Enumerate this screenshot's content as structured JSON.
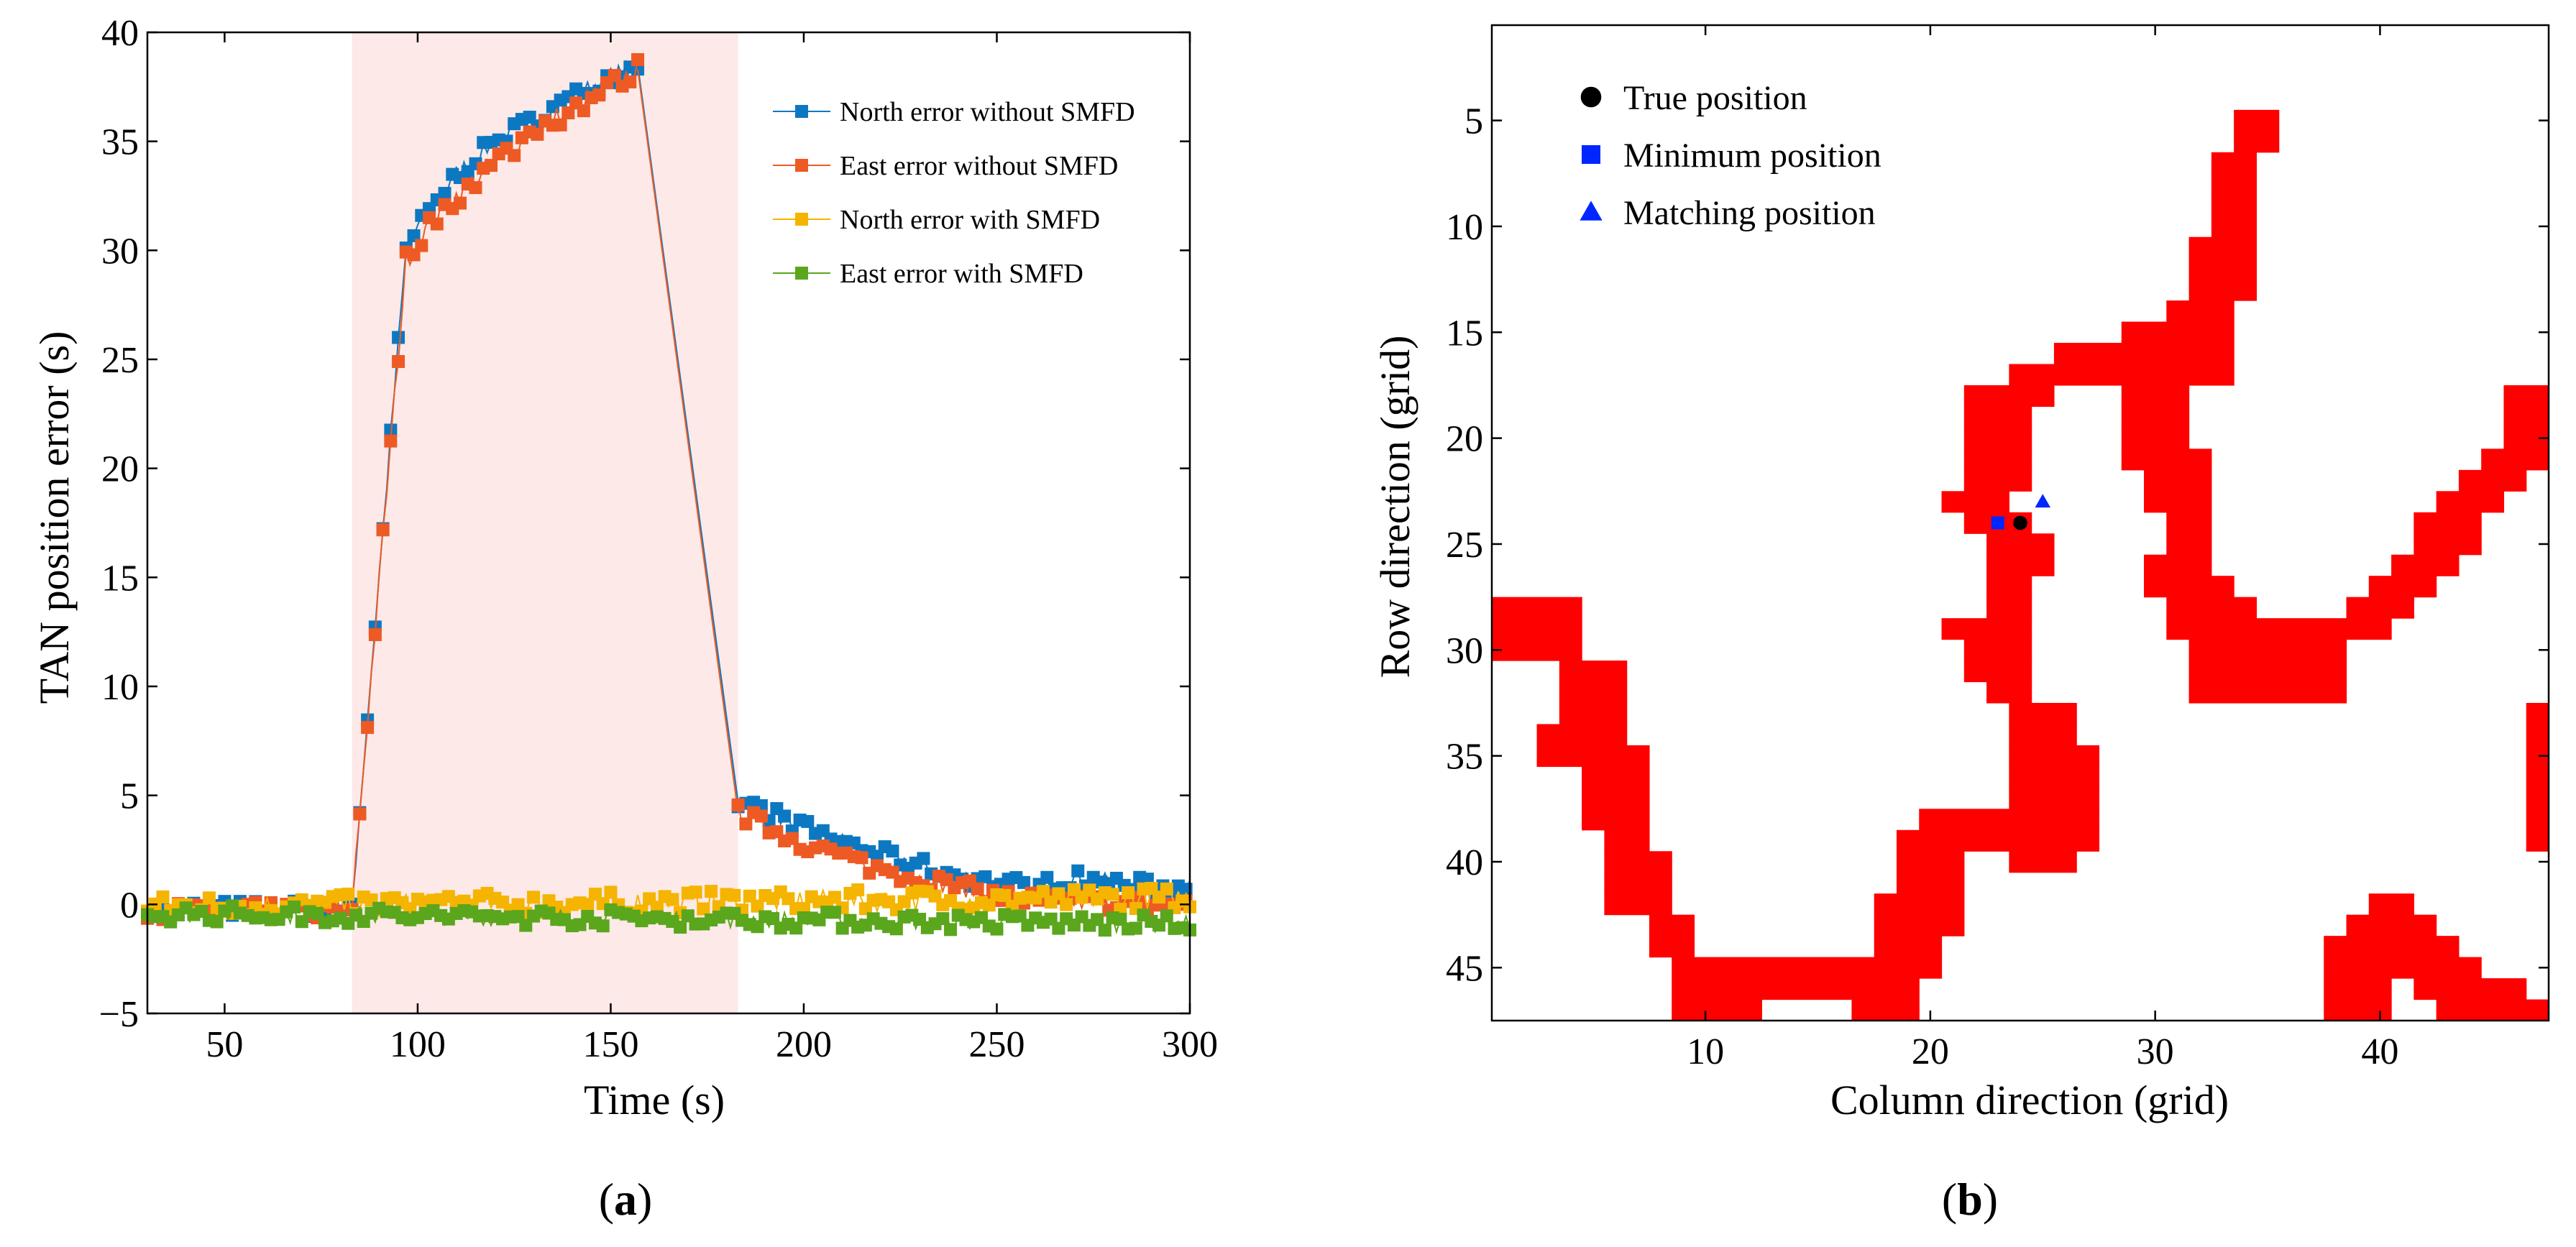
{
  "chart_data": [
    {
      "id": "a",
      "type": "line",
      "panel_label": "a",
      "xlabel": "Time (s)",
      "ylabel": "TAN position error (s)",
      "xlim": [
        30,
        300
      ],
      "ylim": [
        -5,
        40
      ],
      "xticks": [
        50,
        100,
        150,
        200,
        250,
        300
      ],
      "yticks": [
        -5,
        0,
        5,
        10,
        15,
        20,
        25,
        30,
        35,
        40
      ],
      "ytick_labels": [
        "−5",
        "0",
        "5",
        "10",
        "15",
        "20",
        "25",
        "30",
        "35",
        "40"
      ],
      "shaded_region": {
        "x0": 83,
        "x1": 183,
        "color": "#fde9e7"
      },
      "legend_position": "top-right",
      "series": [
        {
          "name": "North error without SMFD",
          "color": "#0d78c2",
          "segments": [
            {
              "x": [
                30,
                83
              ],
              "y": [
                -0.2,
                -0.2
              ],
              "noise": 0.4
            },
            {
              "x": [
                83,
                97,
                100,
                110,
                120,
                130,
                140,
                150,
                157
              ],
              "y": [
                0,
                30,
                31,
                33.5,
                35,
                36,
                37,
                38,
                38.5
              ],
              "noise": 0.4
            },
            {
              "x": [
                157,
                183
              ],
              "y": [
                38.5,
                4.7
              ]
            },
            {
              "x": [
                183,
                190,
                200,
                210,
                220,
                230,
                240,
                250,
                260,
                270,
                280,
                290,
                300
              ],
              "y": [
                4.7,
                4.3,
                3.5,
                2.9,
                2.3,
                1.8,
                1.3,
                1,
                0.8,
                1.2,
                1,
                0.8,
                0.7
              ],
              "noise": 0.4
            }
          ]
        },
        {
          "name": "East error without SMFD",
          "color": "#ee5a24",
          "segments": [
            {
              "x": [
                30,
                83
              ],
              "y": [
                -0.3,
                -0.3
              ],
              "noise": 0.4
            },
            {
              "x": [
                83,
                97,
                100,
                110,
                120,
                130,
                140,
                150,
                157
              ],
              "y": [
                0,
                29.5,
                30.5,
                32.5,
                34,
                35.5,
                36.5,
                37.5,
                38.3
              ],
              "noise": 0.5
            },
            {
              "x": [
                157,
                183
              ],
              "y": [
                38.3,
                4.2
              ]
            },
            {
              "x": [
                183,
                190,
                200,
                210,
                220,
                230,
                240,
                250,
                260,
                270,
                280,
                290,
                300
              ],
              "y": [
                4.2,
                3.6,
                2.8,
                2.2,
                1.6,
                1.2,
                0.8,
                0.4,
                0.2,
                0.1,
                0.1,
                0,
                0
              ],
              "noise": 0.4
            }
          ]
        },
        {
          "name": "North error with SMFD",
          "color": "#f5b400",
          "segments": [
            {
              "x": [
                30,
                300
              ],
              "y": [
                -0.1,
                0.3
              ],
              "noise": 0.5
            }
          ]
        },
        {
          "name": "East error with SMFD",
          "color": "#5aa61d",
          "segments": [
            {
              "x": [
                30,
                300
              ],
              "y": [
                -0.4,
                -0.9
              ],
              "noise": 0.4
            }
          ]
        }
      ]
    },
    {
      "id": "b",
      "type": "heatmap",
      "panel_label": "b",
      "xlabel": "Column direction (grid)",
      "ylabel": "Row direction (grid)",
      "xlim": [
        0.5,
        47.5
      ],
      "ylim": [
        0.5,
        47.5
      ],
      "y_reversed": true,
      "xticks": [
        10,
        20,
        30,
        40
      ],
      "yticks": [
        5,
        10,
        15,
        20,
        25,
        30,
        35,
        40,
        45
      ],
      "fill_color": "#ff0000",
      "legend_position": "top-left",
      "points": [
        {
          "name": "True position",
          "col": 24,
          "row": 24,
          "marker": "circle",
          "color": "#000000"
        },
        {
          "name": "Minimum position",
          "col": 23,
          "row": 24,
          "marker": "square",
          "color": "#0026ff"
        },
        {
          "name": "Matching position",
          "col": 25,
          "row": 23,
          "marker": "triangle",
          "color": "#0026ff"
        }
      ],
      "red_cells_by_row": [
        [],
        [],
        [],
        [],
        [
          [
            34,
            35
          ]
        ],
        [
          [
            34,
            35
          ]
        ],
        [
          [
            33,
            34
          ]
        ],
        [
          [
            33,
            34
          ]
        ],
        [
          [
            33,
            34
          ]
        ],
        [
          [
            33,
            34
          ]
        ],
        [
          [
            32,
            34
          ]
        ],
        [
          [
            32,
            34
          ]
        ],
        [
          [
            32,
            34
          ]
        ],
        [
          [
            31,
            33
          ]
        ],
        [
          [
            29,
            33
          ]
        ],
        [
          [
            26,
            33
          ]
        ],
        [
          [
            24,
            33
          ]
        ],
        [
          [
            22,
            25
          ],
          [
            29,
            31
          ],
          [
            46,
            47
          ]
        ],
        [
          [
            22,
            24
          ],
          [
            29,
            31
          ],
          [
            46,
            47
          ]
        ],
        [
          [
            22,
            24
          ],
          [
            29,
            31
          ],
          [
            46,
            47
          ]
        ],
        [
          [
            22,
            24
          ],
          [
            29,
            32
          ],
          [
            45,
            47
          ]
        ],
        [
          [
            22,
            24
          ],
          [
            30,
            32
          ],
          [
            44,
            46
          ]
        ],
        [
          [
            21,
            23
          ],
          [
            30,
            32
          ],
          [
            43,
            45
          ]
        ],
        [
          [
            22,
            24
          ],
          [
            31,
            32
          ],
          [
            42,
            44
          ]
        ],
        [
          [
            23,
            25
          ],
          [
            31,
            32
          ],
          [
            42,
            44
          ]
        ],
        [
          [
            23,
            25
          ],
          [
            30,
            32
          ],
          [
            41,
            43
          ]
        ],
        [
          [
            23,
            24
          ],
          [
            30,
            33
          ],
          [
            40,
            42
          ]
        ],
        [
          [
            1,
            4
          ],
          [
            23,
            24
          ],
          [
            31,
            34
          ],
          [
            39,
            41
          ]
        ],
        [
          [
            1,
            4
          ],
          [
            21,
            24
          ],
          [
            31,
            37
          ],
          [
            38,
            40
          ]
        ],
        [
          [
            1,
            4
          ],
          [
            22,
            24
          ],
          [
            32,
            38
          ]
        ],
        [
          [
            4,
            6
          ],
          [
            22,
            24
          ],
          [
            32,
            38
          ]
        ],
        [
          [
            4,
            6
          ],
          [
            23,
            24
          ],
          [
            32,
            38
          ]
        ],
        [
          [
            4,
            6
          ],
          [
            24,
            26
          ],
          [
            47,
            47
          ]
        ],
        [
          [
            3,
            6
          ],
          [
            24,
            26
          ],
          [
            47,
            47
          ]
        ],
        [
          [
            3,
            7
          ],
          [
            24,
            27
          ],
          [
            47,
            47
          ]
        ],
        [
          [
            5,
            7
          ],
          [
            24,
            27
          ],
          [
            47,
            47
          ]
        ],
        [
          [
            5,
            7
          ],
          [
            24,
            27
          ],
          [
            47,
            47
          ]
        ],
        [
          [
            5,
            7
          ],
          [
            20,
            27
          ],
          [
            47,
            47
          ]
        ],
        [
          [
            6,
            7
          ],
          [
            19,
            27
          ],
          [
            47,
            47
          ]
        ],
        [
          [
            6,
            8
          ],
          [
            19,
            21
          ],
          [
            24,
            26
          ]
        ],
        [
          [
            6,
            8
          ],
          [
            19,
            21
          ]
        ],
        [
          [
            6,
            8
          ],
          [
            18,
            21
          ],
          [
            40,
            41
          ]
        ],
        [
          [
            8,
            9
          ],
          [
            18,
            21
          ],
          [
            39,
            42
          ]
        ],
        [
          [
            8,
            9
          ],
          [
            18,
            20
          ],
          [
            38,
            43
          ]
        ],
        [
          [
            9,
            19
          ],
          [
            18,
            20
          ],
          [
            38,
            44
          ]
        ],
        [
          [
            9,
            19
          ],
          [
            38,
            40
          ],
          [
            42,
            46
          ]
        ],
        [
          [
            9,
            12
          ],
          [
            17,
            19
          ],
          [
            38,
            40
          ],
          [
            43,
            47
          ]
        ],
        [
          [
            38,
            40
          ],
          [
            44,
            47
          ]
        ]
      ]
    }
  ]
}
